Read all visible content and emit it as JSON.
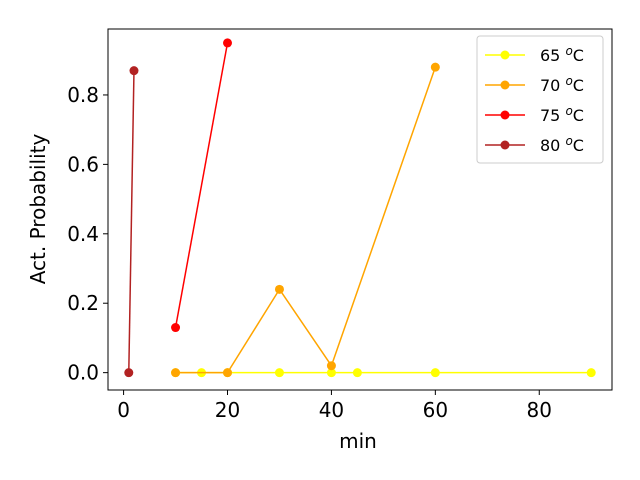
{
  "chart_data": {
    "type": "line",
    "title": "",
    "xlabel": "min",
    "ylabel": "Act. Probability",
    "xlim": [
      -3,
      94
    ],
    "ylim": [
      -0.05,
      0.99
    ],
    "xticks": [
      0,
      20,
      40,
      60,
      80
    ],
    "yticks": [
      0.0,
      0.2,
      0.4,
      0.6,
      0.8
    ],
    "xtick_labels": [
      "0",
      "20",
      "40",
      "60",
      "80"
    ],
    "ytick_labels": [
      "0.0",
      "0.2",
      "0.4",
      "0.6",
      "0.8"
    ],
    "grid": false,
    "legend_position": "top-right",
    "series": [
      {
        "name": "65 ",
        "name_sup": "o",
        "name_unit": "C",
        "color": "#ffff00",
        "x": [
          10,
          15,
          20,
          30,
          40,
          45,
          60,
          90
        ],
        "y": [
          0.0,
          0.0,
          0.0,
          0.0,
          0.0,
          0.0,
          0.0,
          0.0
        ]
      },
      {
        "name": "70 ",
        "name_sup": "o",
        "name_unit": "C",
        "color": "#ffa500",
        "x": [
          10,
          20,
          30,
          40,
          60
        ],
        "y": [
          0.0,
          0.0,
          0.24,
          0.02,
          0.88
        ]
      },
      {
        "name": "75 ",
        "name_sup": "o",
        "name_unit": "C",
        "color": "#ff0000",
        "x": [
          10,
          20
        ],
        "y": [
          0.13,
          0.95
        ]
      },
      {
        "name": "80 ",
        "name_sup": "o",
        "name_unit": "C",
        "color": "#b22222",
        "x": [
          1,
          2
        ],
        "y": [
          0.0,
          0.87
        ]
      }
    ]
  }
}
